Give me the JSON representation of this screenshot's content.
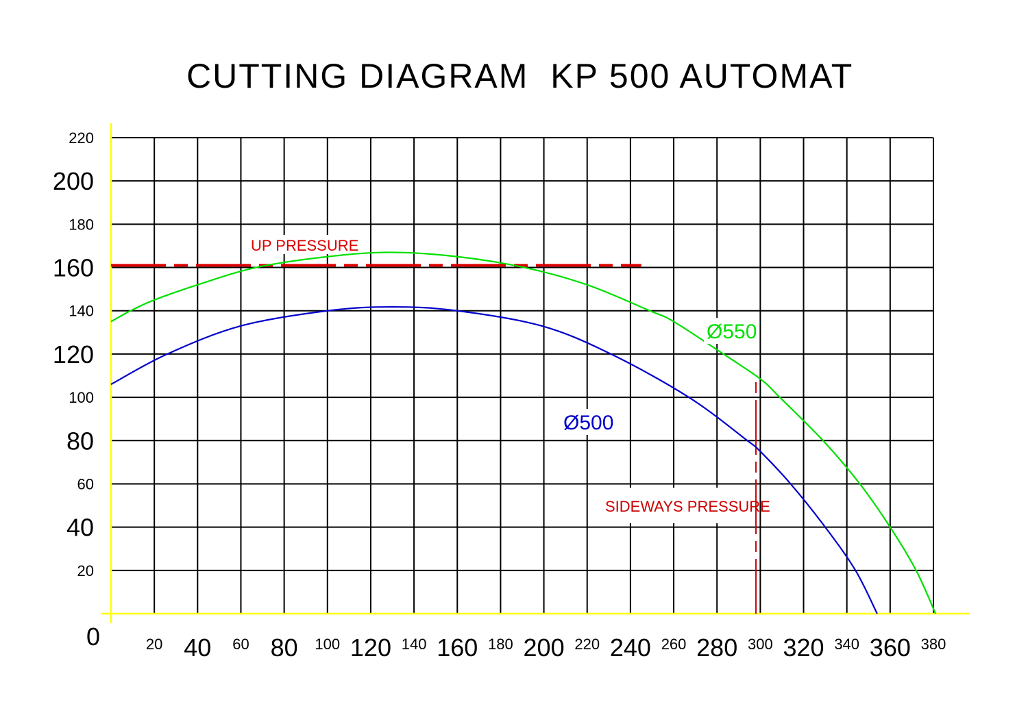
{
  "chart_data": {
    "type": "line",
    "title": "CUTTING DIAGRAM  KP 500 AUTOMAT",
    "xlabel": "",
    "ylabel": "",
    "xlim": [
      0,
      380
    ],
    "ylim": [
      0,
      220
    ],
    "grid": true,
    "origin_label": "0",
    "x_ticks": [
      20,
      40,
      60,
      80,
      100,
      120,
      140,
      160,
      180,
      200,
      220,
      240,
      260,
      280,
      300,
      320,
      340,
      360,
      380
    ],
    "y_ticks": [
      20,
      40,
      60,
      80,
      100,
      120,
      140,
      160,
      180,
      200,
      220
    ],
    "series": [
      {
        "name": "Ø550",
        "color": "#00e000",
        "points": [
          [
            0,
            135
          ],
          [
            9,
            140
          ],
          [
            20,
            145
          ],
          [
            40,
            152
          ],
          [
            67,
            160
          ],
          [
            100,
            165
          ],
          [
            129,
            167
          ],
          [
            160,
            165
          ],
          [
            191,
            160
          ],
          [
            220,
            152
          ],
          [
            249,
            140
          ],
          [
            260,
            135
          ],
          [
            283,
            120
          ],
          [
            300,
            108.5
          ],
          [
            309,
            100
          ],
          [
            329,
            80
          ],
          [
            346,
            60
          ],
          [
            360,
            40
          ],
          [
            372,
            20
          ],
          [
            381,
            0
          ]
        ]
      },
      {
        "name": "Ø500",
        "color": "#0000cc",
        "points": [
          [
            0,
            106
          ],
          [
            26,
            120
          ],
          [
            60,
            133
          ],
          [
            100,
            140
          ],
          [
            130,
            141.8
          ],
          [
            160,
            140
          ],
          [
            199,
            133
          ],
          [
            231,
            120
          ],
          [
            267,
            100
          ],
          [
            294,
            80
          ],
          [
            300,
            75
          ],
          [
            314,
            60
          ],
          [
            330,
            40
          ],
          [
            344,
            20
          ],
          [
            354,
            0
          ]
        ]
      }
    ],
    "annotations": [
      {
        "text": "UP PRESSURE",
        "color": "#dd0000",
        "type": "horizontal-dashed",
        "y": 161,
        "x_range": [
          0,
          245
        ]
      },
      {
        "text": "SIDEWAYS PRESSURE",
        "color": "#cc0000",
        "type": "vertical-dashed",
        "x": 298,
        "y_range": [
          0,
          108.5
        ]
      }
    ],
    "axis_color": "#ffff00",
    "grid_color": "#000000"
  }
}
